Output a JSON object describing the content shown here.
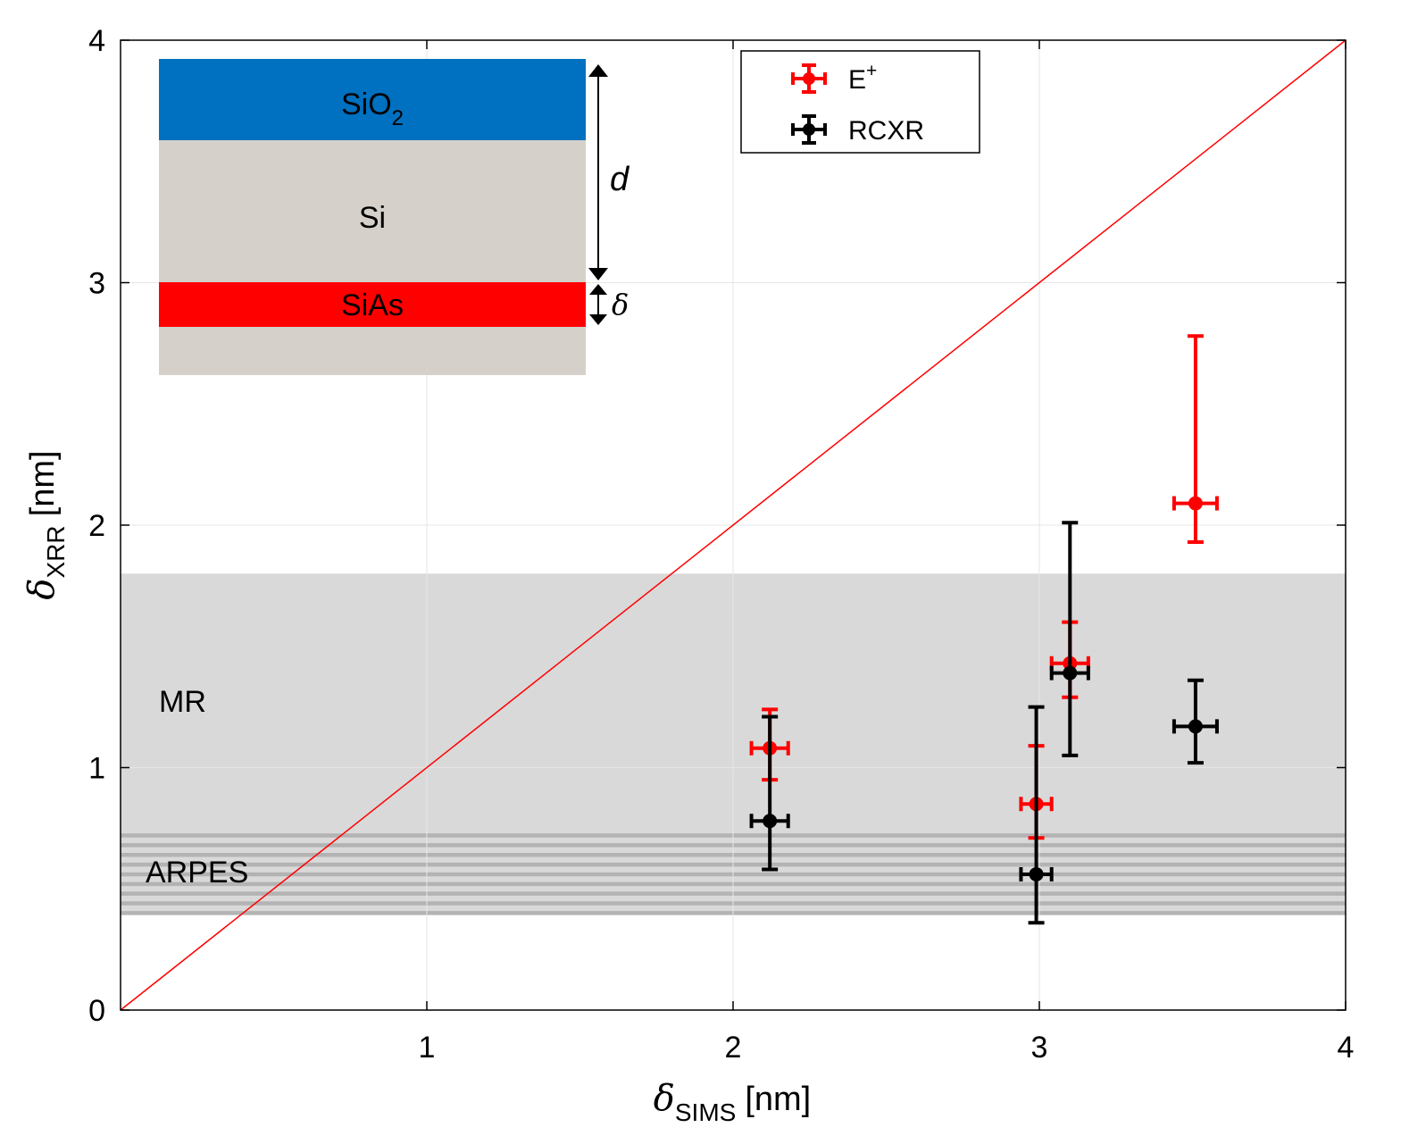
{
  "chart_data": {
    "type": "scatter",
    "xlabel_symbol": "δ",
    "xlabel_sub": "SIMS",
    "xlabel_unit": "[nm]",
    "ylabel_symbol": "δ",
    "ylabel_sub": "XRR",
    "ylabel_unit": "[nm]",
    "xlim": [
      0,
      4
    ],
    "ylim": [
      0,
      4
    ],
    "x_ticks": [
      1,
      2,
      3,
      4
    ],
    "y_ticks": [
      0,
      1,
      2,
      3,
      4
    ],
    "grid": true,
    "reference_line": {
      "name": "y = x",
      "from": [
        0,
        0
      ],
      "to": [
        4,
        4
      ],
      "color": "#ff0000"
    },
    "bands": [
      {
        "name": "MR",
        "label": "MR",
        "y_min": 0.4,
        "y_max": 1.8,
        "color": "#d9d9d9"
      },
      {
        "name": "ARPES",
        "label": "ARPES",
        "y_min": 0.4,
        "y_max": 0.72,
        "color": "#b3b3b3",
        "style": "striped"
      }
    ],
    "series": [
      {
        "name": "E+",
        "label_main": "E",
        "label_sup": "+",
        "color": "#ff0000",
        "points": [
          {
            "x": 2.12,
            "y": 1.08,
            "xerr": 0.06,
            "ylow": 0.95,
            "yhigh": 1.24
          },
          {
            "x": 2.99,
            "y": 0.85,
            "xerr": 0.05,
            "ylow": 0.71,
            "yhigh": 1.09
          },
          {
            "x": 3.1,
            "y": 1.43,
            "xerr": 0.06,
            "ylow": 1.29,
            "yhigh": 1.6
          },
          {
            "x": 3.51,
            "y": 2.09,
            "xerr": 0.07,
            "ylow": 1.93,
            "yhigh": 2.78
          }
        ]
      },
      {
        "name": "RCXR",
        "label_main": "RCXR",
        "label_sup": "",
        "color": "#000000",
        "points": [
          {
            "x": 2.12,
            "y": 0.78,
            "xerr": 0.06,
            "ylow": 0.58,
            "yhigh": 1.21
          },
          {
            "x": 2.99,
            "y": 0.56,
            "xerr": 0.05,
            "ylow": 0.36,
            "yhigh": 1.25
          },
          {
            "x": 3.1,
            "y": 1.39,
            "xerr": 0.06,
            "ylow": 1.05,
            "yhigh": 2.01
          },
          {
            "x": 3.51,
            "y": 1.17,
            "xerr": 0.07,
            "ylow": 1.02,
            "yhigh": 1.36
          }
        ]
      }
    ]
  },
  "inset": {
    "layers": [
      {
        "name": "SiO2",
        "label_main": "SiO",
        "label_sub": "2",
        "color": "#0070c0"
      },
      {
        "name": "Si",
        "label_main": "Si",
        "label_sub": "",
        "color": "#d5d1ca"
      },
      {
        "name": "SiAs",
        "label_main": "SiAs",
        "label_sub": "",
        "color": "#ff0000"
      },
      {
        "name": "Si-substrate",
        "label_main": "",
        "label_sub": "",
        "color": "#d5d1ca"
      }
    ],
    "d_label": "d",
    "delta_label": "δ"
  }
}
